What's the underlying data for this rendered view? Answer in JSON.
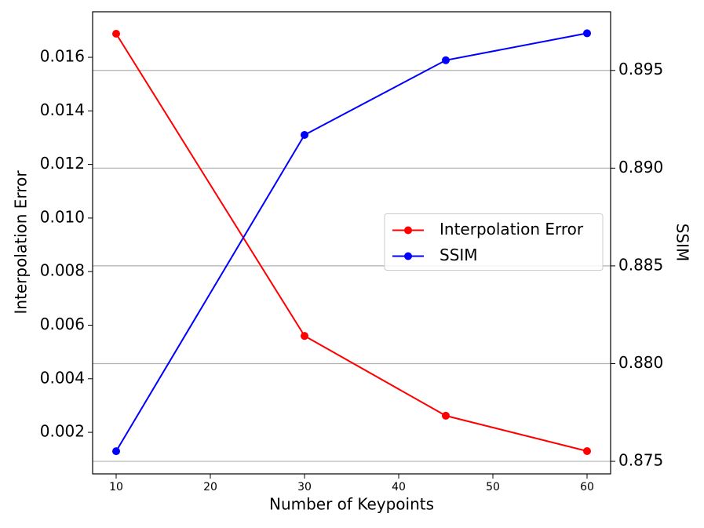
{
  "chart_data": {
    "type": "line",
    "x_label": "Number of Keypoints",
    "y_label": "Interpolation Error",
    "y2_label": "SSIM",
    "x": [
      10,
      30,
      45,
      60
    ],
    "xlim": [
      7.5,
      62.5
    ],
    "xticks": [
      10,
      20,
      30,
      40,
      50,
      60
    ],
    "ylim": [
      0.00045,
      0.0177
    ],
    "yticks": [
      0.002,
      0.004,
      0.006,
      0.008,
      {
        "value": 0.01,
        "label": "0.010"
      },
      0.012,
      0.014,
      0.016
    ],
    "y2lim": [
      0.87436,
      0.898
    ],
    "y2ticks": [
      0.875,
      {
        "value": 0.88,
        "label": "0.880"
      },
      0.885,
      {
        "value": 0.89,
        "label": "0.890"
      },
      0.895
    ],
    "grid": true,
    "legend": "center right",
    "y_color": "#ff0000",
    "series": [
      {
        "name": "Interpolation Error",
        "color": "#ff0000",
        "values": [
          0.01688,
          0.0056,
          0.00262,
          0.0013
        ]
      },
      {
        "name": "SSIM",
        "color": "#0000ff",
        "axis": "y2",
        "values": [
          0.87552,
          0.8917,
          0.89552,
          0.8969
        ]
      }
    ]
  }
}
